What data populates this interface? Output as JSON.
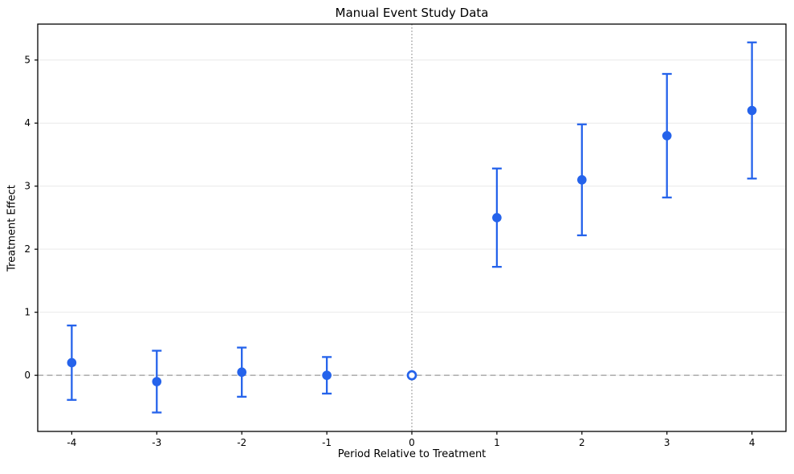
{
  "figure": {
    "background": "#ffffff"
  },
  "chart_data": {
    "type": "scatter",
    "subtype": "errorbar-event-study",
    "title": "Manual Event Study Data",
    "xlabel": "Period Relative to Treatment",
    "ylabel": "Treatment Effect",
    "xlim": [
      -4.4,
      4.4
    ],
    "ylim": [
      -0.89,
      5.57
    ],
    "x_ticks": [
      -4,
      -3,
      -2,
      -1,
      0,
      1,
      2,
      3,
      4
    ],
    "x_tick_labels": [
      "-4",
      "-3",
      "-2",
      "-1",
      "0",
      "1",
      "2",
      "3",
      "4"
    ],
    "y_ticks": [
      0,
      1,
      2,
      3,
      4,
      5
    ],
    "y_tick_labels": [
      "0",
      "1",
      "2",
      "3",
      "4",
      "5"
    ],
    "grid": "horizontal",
    "legend": false,
    "series": [
      {
        "name": "treatment-effects",
        "points": [
          {
            "period": -4,
            "effect": 0.2,
            "ci_low": -0.39,
            "ci_high": 0.79,
            "reference": false
          },
          {
            "period": -3,
            "effect": -0.1,
            "ci_low": -0.59,
            "ci_high": 0.39,
            "reference": false
          },
          {
            "period": -2,
            "effect": 0.05,
            "ci_low": -0.34,
            "ci_high": 0.44,
            "reference": false
          },
          {
            "period": -1,
            "effect": 0.0,
            "ci_low": -0.29,
            "ci_high": 0.29,
            "reference": false
          },
          {
            "period": 0,
            "effect": 0.0,
            "ci_low": null,
            "ci_high": null,
            "reference": true
          },
          {
            "period": 1,
            "effect": 2.5,
            "ci_low": 1.72,
            "ci_high": 3.28,
            "reference": false
          },
          {
            "period": 2,
            "effect": 3.1,
            "ci_low": 2.22,
            "ci_high": 3.98,
            "reference": false
          },
          {
            "period": 3,
            "effect": 3.8,
            "ci_low": 2.82,
            "ci_high": 4.78,
            "reference": false
          },
          {
            "period": 4,
            "effect": 4.2,
            "ci_low": 3.12,
            "ci_high": 5.28,
            "reference": false
          }
        ]
      }
    ],
    "annotations": {
      "zero_line": {
        "y": 0,
        "style": "dashed",
        "color": "#9a9a9a"
      },
      "event_line": {
        "x": 0,
        "style": "dotted",
        "color": "#8a8a8a"
      }
    },
    "colors": {
      "marker": "#2563eb",
      "grid": "#e9e9e9",
      "spine": "#000000",
      "text": "#000000"
    }
  }
}
